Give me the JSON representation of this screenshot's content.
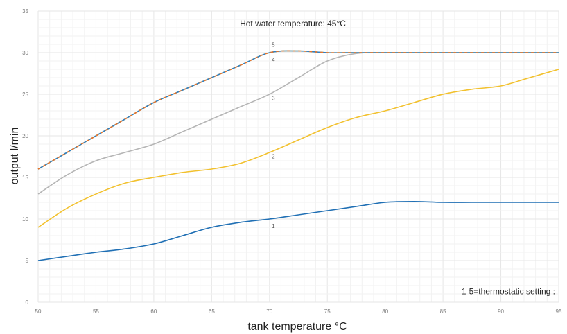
{
  "chart_data": {
    "type": "line",
    "title": "",
    "xlabel": "tank temperature °C",
    "ylabel": "output l/min",
    "xlim": [
      50,
      95
    ],
    "ylim": [
      0,
      35
    ],
    "x_ticks": [
      50,
      55,
      60,
      65,
      70,
      75,
      80,
      85,
      90,
      95
    ],
    "y_ticks": [
      0,
      5,
      10,
      15,
      20,
      25,
      30,
      35
    ],
    "grid": true,
    "annotations": [
      {
        "text": "Hot water temperature: 45°C",
        "x": 72.5,
        "y": 33.5
      },
      {
        "text": "1-5=thermostatic setting :",
        "x": 88,
        "y": 1.3
      }
    ],
    "x": [
      50,
      52.5,
      55,
      57.5,
      60,
      62.5,
      65,
      67.5,
      70,
      72.5,
      75,
      77.5,
      80,
      82.5,
      85,
      87.5,
      90,
      92.5,
      95
    ],
    "series": [
      {
        "name": "1",
        "color": "#1f6fb4",
        "dashed": false,
        "label_pos": [
          70.2,
          8.9
        ],
        "values": [
          5,
          5.5,
          6,
          6.4,
          7,
          8,
          9,
          9.6,
          10,
          10.5,
          11,
          11.5,
          12,
          12.1,
          12,
          12,
          12,
          12,
          12
        ]
      },
      {
        "name": "2",
        "color": "#f2c12e",
        "dashed": false,
        "label_pos": [
          70.2,
          17.3
        ],
        "values": [
          9,
          11.3,
          13,
          14.3,
          15,
          15.6,
          16,
          16.7,
          18,
          19.5,
          21,
          22.2,
          23,
          24,
          25,
          25.6,
          26,
          27,
          28
        ]
      },
      {
        "name": "3",
        "color": "#b5b5b5",
        "dashed": false,
        "label_pos": [
          70.2,
          24.3
        ],
        "values": [
          13,
          15.3,
          17,
          18,
          19,
          20.5,
          22,
          23.5,
          25,
          27,
          29,
          29.9,
          30,
          30,
          30,
          30,
          30,
          30,
          30
        ]
      },
      {
        "name": "4",
        "color": "#f2c12e",
        "dashed": false,
        "label_pos": [
          70.2,
          28.9
        ],
        "values": [
          16,
          18,
          20,
          22,
          24,
          25.5,
          27,
          28.5,
          30,
          30.2,
          30,
          30,
          30,
          30,
          30,
          30,
          30,
          30,
          30
        ]
      },
      {
        "name": "5",
        "color": "#2f80c4",
        "dashed": true,
        "label_pos": [
          70.2,
          30.7
        ],
        "values": [
          16,
          18,
          20,
          22,
          24,
          25.5,
          27,
          28.5,
          30,
          30.2,
          30,
          30,
          30,
          30,
          30,
          30,
          30,
          30,
          30
        ]
      }
    ]
  },
  "colors": {
    "gridline": "#e6e6e6",
    "minor_gridline": "#f2f2f2",
    "series5_dash_overlay": "#e8742a"
  }
}
